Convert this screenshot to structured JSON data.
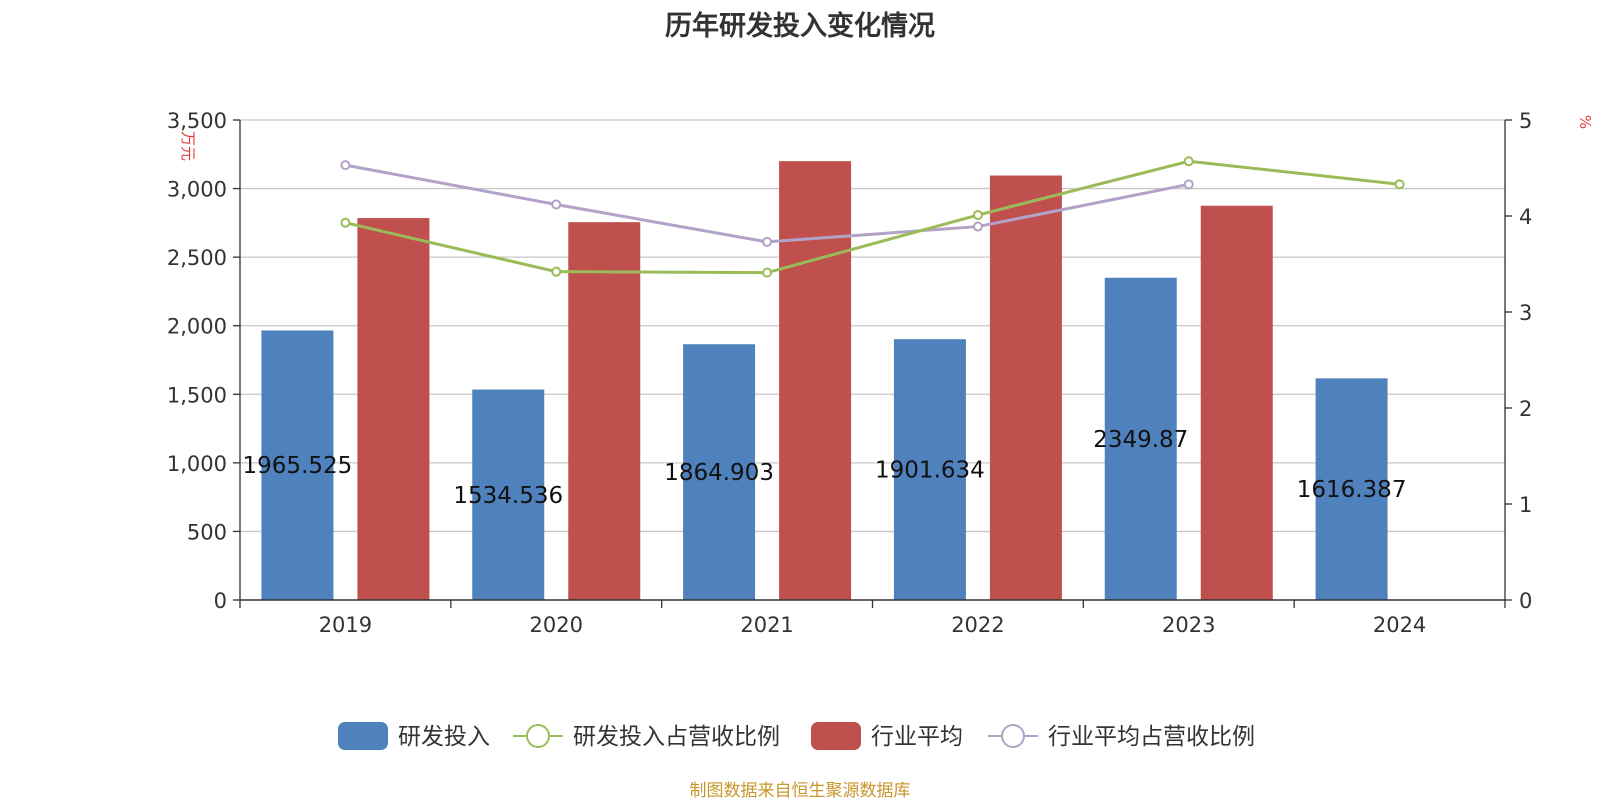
{
  "title": "历年研发投入变化情况",
  "source_note": "制图数据来自恒生聚源数据库",
  "colors": {
    "rd_bar": "#4f81bd",
    "industry_bar": "#c0504d",
    "rd_ratio_line": "#9bbb59",
    "industry_ratio_line": "#b3a2c7",
    "unit_text": "#e03c3c"
  },
  "chart_data": {
    "type": "bar",
    "categories": [
      "2019",
      "2020",
      "2021",
      "2022",
      "2023",
      "2024"
    ],
    "y_left": {
      "unit": "万元",
      "ylim": [
        0,
        3500
      ],
      "ticks": [
        "0",
        "500",
        "1,000",
        "1,500",
        "2,000",
        "2,500",
        "3,000",
        "3,500"
      ]
    },
    "y_right": {
      "unit": "%",
      "ylim": [
        0,
        5
      ],
      "ticks": [
        "0",
        "1",
        "2",
        "3",
        "4",
        "5"
      ]
    },
    "grid": true,
    "legend_position": "bottom",
    "series": [
      {
        "name": "研发投入",
        "type": "bar",
        "axis": "left",
        "values": [
          1965.525,
          1534.536,
          1864.903,
          1901.634,
          2349.87,
          1616.387
        ],
        "labels": [
          "1965.525",
          "1534.536",
          "1864.903",
          "1901.634",
          "2349.87",
          "1616.387"
        ]
      },
      {
        "name": "研发投入占营收比例",
        "type": "line",
        "axis": "right",
        "values": [
          3.93,
          3.42,
          3.41,
          4.01,
          4.57,
          4.33
        ]
      },
      {
        "name": "行业平均",
        "type": "bar",
        "axis": "left",
        "values": [
          2785,
          2755,
          3200,
          3095,
          2875,
          null
        ]
      },
      {
        "name": "行业平均占营收比例",
        "type": "line",
        "axis": "right",
        "values": [
          4.53,
          4.12,
          3.73,
          3.89,
          4.33,
          null
        ]
      }
    ]
  }
}
